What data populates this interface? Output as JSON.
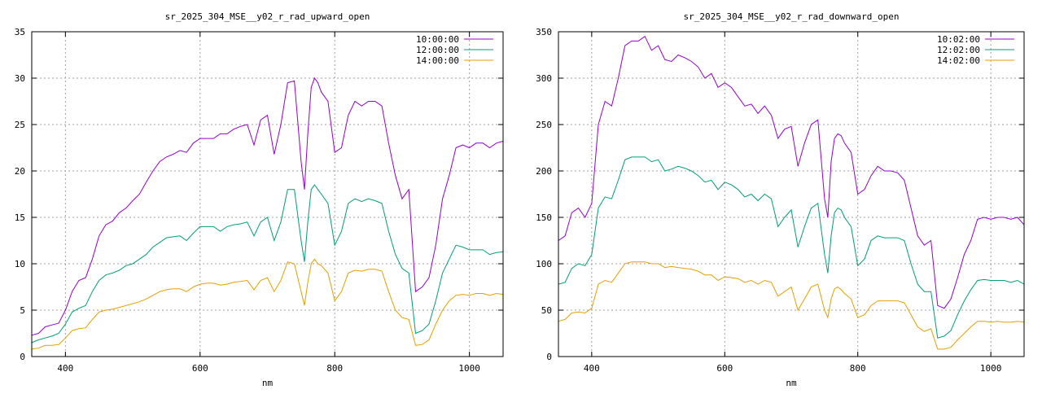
{
  "colors": {
    "series1": "#9400d3",
    "series2": "#009e73",
    "series3": "#e69f00",
    "grid": "#a0a0a0",
    "axis": "#000000"
  },
  "chart_data": [
    {
      "type": "line",
      "title": "sr_2025_304_MSE__y02_r_rad_upward_open",
      "xlabel": "nm",
      "ylabel": "",
      "xlim": [
        350,
        1050
      ],
      "ylim": [
        0,
        35
      ],
      "xticks": [
        400,
        600,
        800,
        1000
      ],
      "yticks": [
        0,
        5,
        10,
        15,
        20,
        25,
        30,
        35
      ],
      "grid": true,
      "legend": "top-right",
      "x": [
        350,
        360,
        370,
        380,
        390,
        400,
        410,
        420,
        430,
        440,
        450,
        460,
        470,
        480,
        490,
        500,
        510,
        520,
        530,
        540,
        550,
        560,
        570,
        580,
        590,
        600,
        610,
        620,
        630,
        640,
        650,
        660,
        670,
        680,
        690,
        700,
        710,
        720,
        730,
        740,
        750,
        755,
        760,
        765,
        770,
        775,
        780,
        790,
        800,
        810,
        820,
        830,
        840,
        850,
        860,
        870,
        880,
        890,
        900,
        910,
        920,
        930,
        940,
        950,
        960,
        970,
        980,
        990,
        1000,
        1010,
        1020,
        1030,
        1040,
        1050
      ],
      "series": [
        {
          "name": "10:00:00",
          "values": [
            2.3,
            2.5,
            3.2,
            3.4,
            3.6,
            5.0,
            7.0,
            8.2,
            8.5,
            10.5,
            13.0,
            14.2,
            14.6,
            15.5,
            16.0,
            16.8,
            17.5,
            18.8,
            20.0,
            21.0,
            21.5,
            21.8,
            22.2,
            22.0,
            23.0,
            23.5,
            23.5,
            23.5,
            24.0,
            24.0,
            24.5,
            24.8,
            25.0,
            22.8,
            25.5,
            26.0,
            21.8,
            25.0,
            29.5,
            29.7,
            21.0,
            18.0,
            24.0,
            29.0,
            30.0,
            29.5,
            28.5,
            27.5,
            22.0,
            22.5,
            26.0,
            27.5,
            27.0,
            27.5,
            27.5,
            27.0,
            23.0,
            19.5,
            17.0,
            18.0,
            7.0,
            7.5,
            8.5,
            12.0,
            17.0,
            19.5,
            22.5,
            22.8,
            22.5,
            23.0,
            23.0,
            22.5,
            23.0,
            23.2
          ]
        },
        {
          "name": "12:00:00",
          "values": [
            1.5,
            1.8,
            2.0,
            2.2,
            2.5,
            3.5,
            4.8,
            5.2,
            5.5,
            7.0,
            8.2,
            8.8,
            9.0,
            9.3,
            9.8,
            10.0,
            10.5,
            11.0,
            11.8,
            12.3,
            12.8,
            12.9,
            13.0,
            12.5,
            13.3,
            14.0,
            14.0,
            14.0,
            13.5,
            14.0,
            14.2,
            14.3,
            14.5,
            13.0,
            14.5,
            15.0,
            12.5,
            14.5,
            18.0,
            18.0,
            12.5,
            10.2,
            14.5,
            18.0,
            18.5,
            18.0,
            17.5,
            16.5,
            12.0,
            13.5,
            16.5,
            17.0,
            16.7,
            17.0,
            16.8,
            16.5,
            13.5,
            11.0,
            9.5,
            9.0,
            2.5,
            2.8,
            3.5,
            6.0,
            9.0,
            10.5,
            12.0,
            11.8,
            11.5,
            11.5,
            11.5,
            11.0,
            11.2,
            11.3
          ]
        },
        {
          "name": "14:00:00",
          "values": [
            0.8,
            0.9,
            1.2,
            1.2,
            1.3,
            2.0,
            2.8,
            3.0,
            3.1,
            4.0,
            4.8,
            5.0,
            5.1,
            5.3,
            5.5,
            5.7,
            5.9,
            6.2,
            6.6,
            7.0,
            7.2,
            7.3,
            7.3,
            7.0,
            7.5,
            7.8,
            7.9,
            7.9,
            7.7,
            7.8,
            8.0,
            8.1,
            8.2,
            7.2,
            8.2,
            8.5,
            7.0,
            8.2,
            10.2,
            10.0,
            7.0,
            5.5,
            8.0,
            10.0,
            10.5,
            10.0,
            9.8,
            9.0,
            6.0,
            7.0,
            9.0,
            9.3,
            9.2,
            9.4,
            9.4,
            9.2,
            7.0,
            5.0,
            4.2,
            4.0,
            1.2,
            1.3,
            1.8,
            3.5,
            5.0,
            6.0,
            6.6,
            6.7,
            6.6,
            6.8,
            6.8,
            6.6,
            6.8,
            6.7
          ]
        }
      ]
    },
    {
      "type": "line",
      "title": "sr_2025_304_MSE__y02_r_rad_downward_open",
      "xlabel": "nm",
      "ylabel": "",
      "xlim": [
        350,
        1050
      ],
      "ylim": [
        0,
        350
      ],
      "xticks": [
        400,
        600,
        800,
        1000
      ],
      "yticks": [
        0,
        50,
        100,
        150,
        200,
        250,
        300,
        350
      ],
      "grid": true,
      "legend": "top-right",
      "x": [
        350,
        360,
        370,
        380,
        390,
        400,
        410,
        420,
        430,
        440,
        450,
        460,
        470,
        480,
        490,
        500,
        510,
        520,
        530,
        540,
        550,
        560,
        570,
        580,
        590,
        600,
        610,
        620,
        630,
        640,
        650,
        660,
        670,
        680,
        690,
        700,
        710,
        720,
        730,
        740,
        750,
        755,
        760,
        765,
        770,
        775,
        780,
        790,
        800,
        810,
        820,
        830,
        840,
        850,
        860,
        870,
        880,
        890,
        900,
        910,
        920,
        930,
        940,
        950,
        960,
        970,
        980,
        990,
        1000,
        1010,
        1020,
        1030,
        1040,
        1050
      ],
      "series": [
        {
          "name": "10:02:00",
          "values": [
            125,
            130,
            155,
            160,
            150,
            165,
            250,
            275,
            270,
            300,
            335,
            340,
            340,
            345,
            330,
            335,
            320,
            318,
            325,
            322,
            318,
            312,
            300,
            305,
            290,
            295,
            290,
            280,
            270,
            272,
            262,
            270,
            260,
            235,
            245,
            248,
            205,
            230,
            250,
            255,
            170,
            150,
            210,
            235,
            240,
            238,
            230,
            220,
            175,
            180,
            195,
            205,
            200,
            200,
            198,
            190,
            160,
            130,
            120,
            125,
            55,
            52,
            62,
            85,
            110,
            125,
            148,
            150,
            148,
            150,
            150,
            148,
            150,
            142
          ]
        },
        {
          "name": "12:02:00",
          "values": [
            78,
            80,
            95,
            100,
            98,
            110,
            160,
            172,
            170,
            190,
            212,
            215,
            215,
            215,
            210,
            212,
            200,
            202,
            205,
            203,
            200,
            195,
            188,
            190,
            180,
            188,
            185,
            180,
            172,
            175,
            168,
            175,
            170,
            140,
            150,
            158,
            118,
            140,
            160,
            165,
            110,
            90,
            130,
            155,
            160,
            158,
            150,
            140,
            98,
            105,
            125,
            130,
            128,
            128,
            128,
            125,
            100,
            78,
            70,
            70,
            20,
            22,
            28,
            45,
            60,
            72,
            82,
            83,
            82,
            82,
            82,
            80,
            82,
            78
          ]
        },
        {
          "name": "14:02:00",
          "values": [
            38,
            40,
            47,
            48,
            47,
            52,
            78,
            82,
            80,
            90,
            100,
            102,
            102,
            102,
            100,
            100,
            96,
            97,
            96,
            95,
            94,
            92,
            88,
            88,
            82,
            86,
            85,
            84,
            80,
            82,
            78,
            82,
            80,
            65,
            70,
            75,
            50,
            62,
            75,
            78,
            50,
            42,
            62,
            73,
            75,
            72,
            68,
            62,
            42,
            45,
            55,
            60,
            60,
            60,
            60,
            58,
            45,
            32,
            27,
            30,
            8,
            8,
            10,
            18,
            25,
            32,
            38,
            38,
            37,
            38,
            37,
            37,
            38,
            37
          ]
        }
      ]
    }
  ]
}
